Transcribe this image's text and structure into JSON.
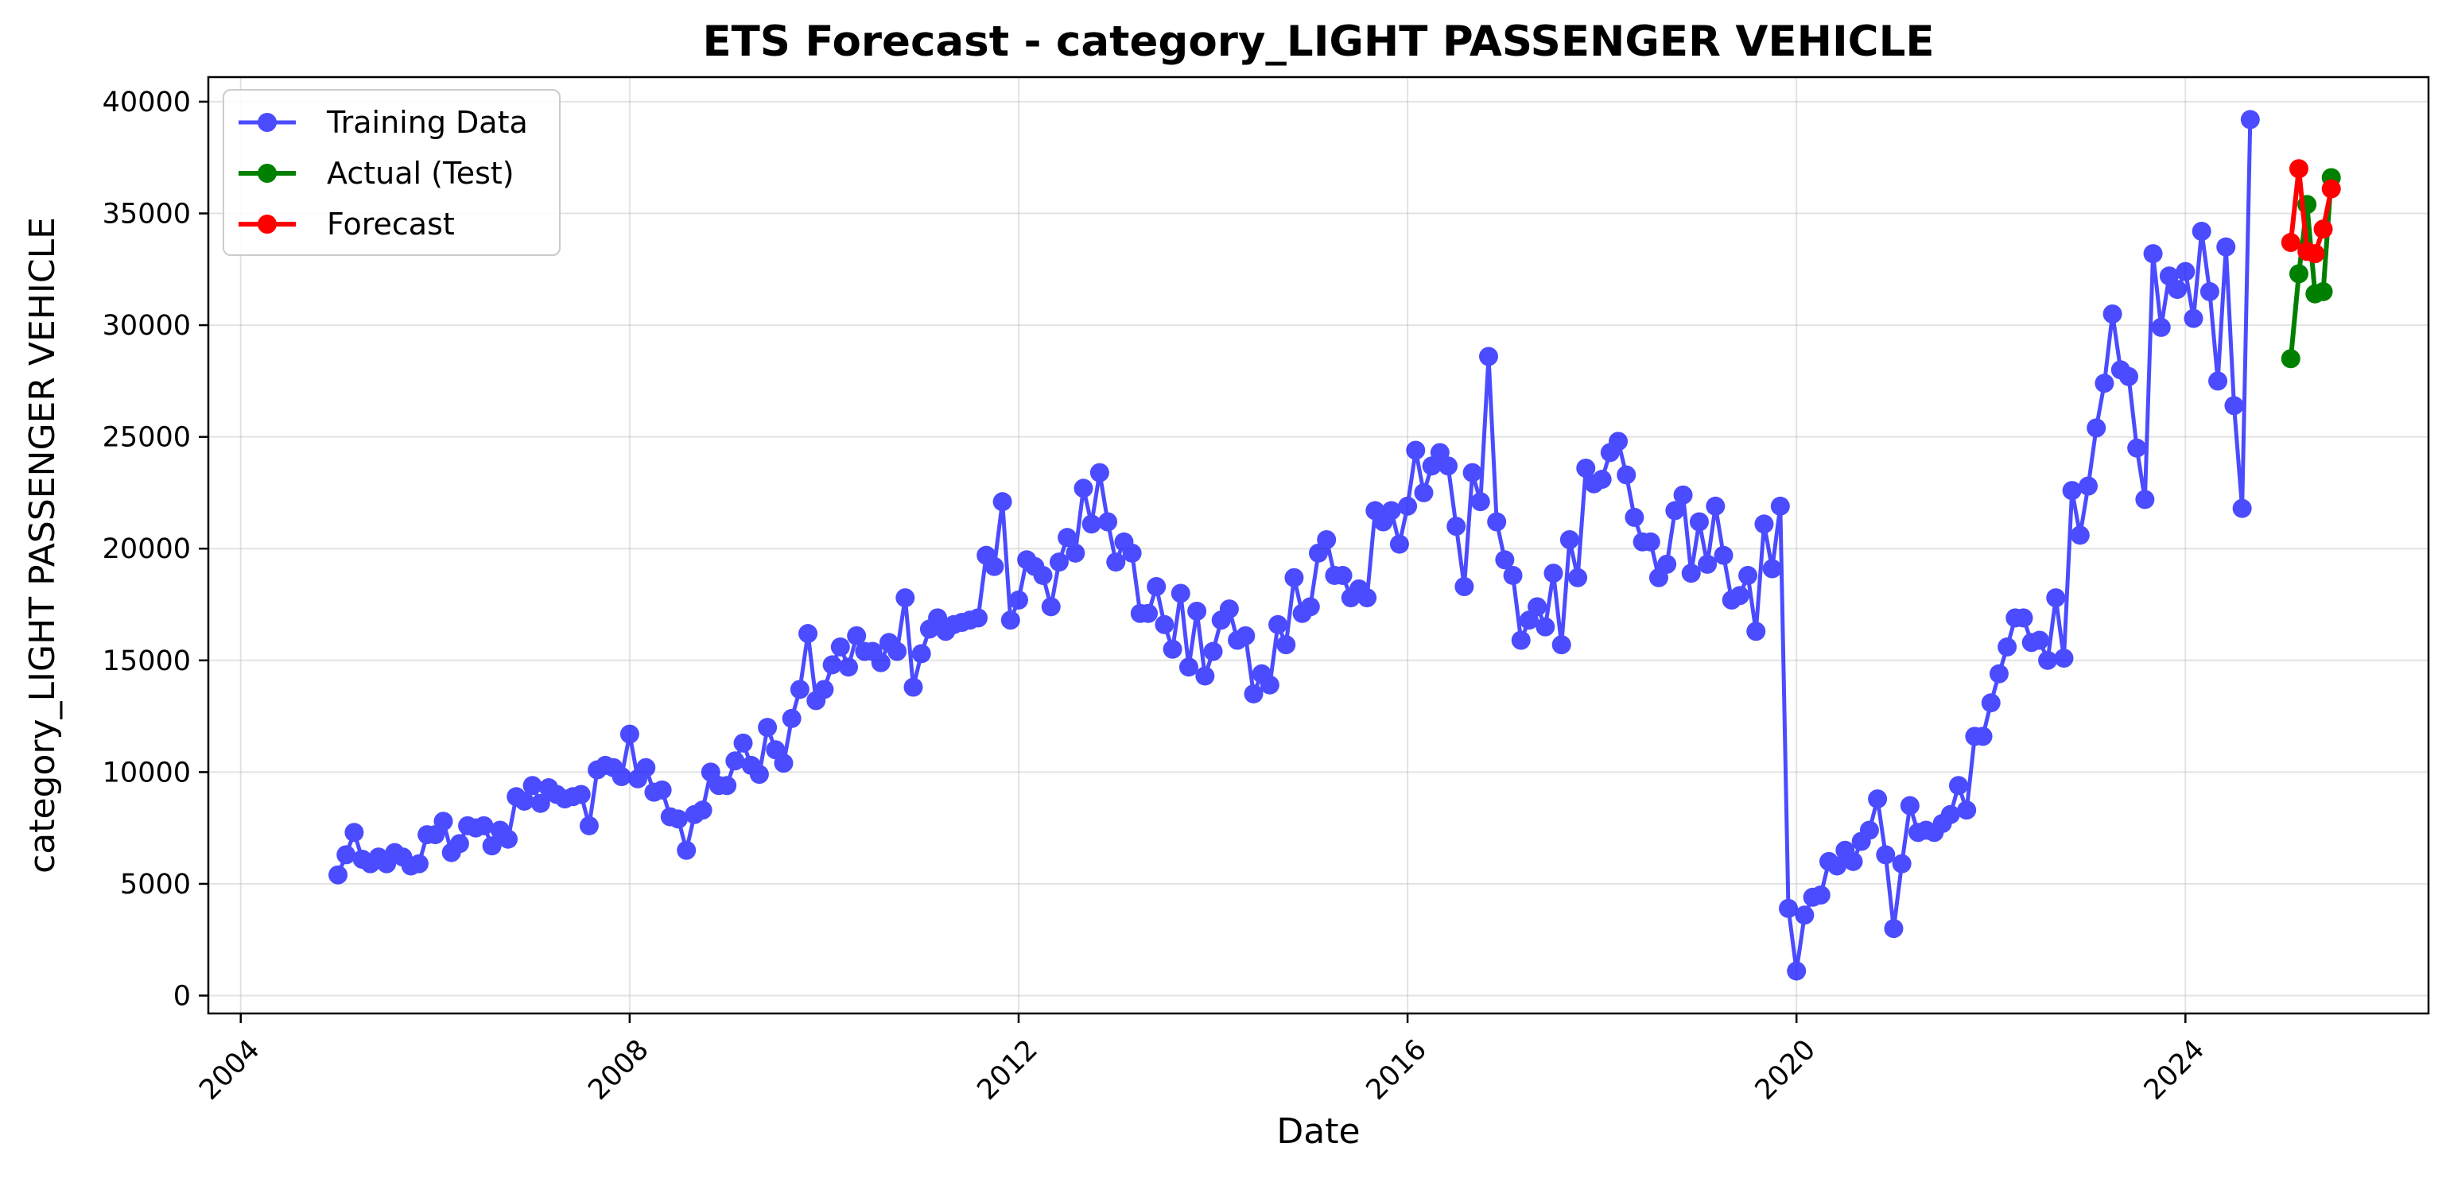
{
  "chart_data": {
    "type": "line",
    "title": "ETS Forecast - category_LIGHT PASSENGER VEHICLE",
    "xlabel": "Date",
    "ylabel": "category_LIGHT PASSENGER VEHICLE",
    "x_axis": {
      "type": "date",
      "range": [
        "2003-09-01",
        "2026-07-01"
      ],
      "ticks": [
        "2004",
        "2008",
        "2012",
        "2016",
        "2020",
        "2024"
      ],
      "tick_rotation_deg": 45
    },
    "y_axis": {
      "range": [
        -800,
        41100
      ],
      "ticks": [
        "0",
        "5000",
        "10000",
        "15000",
        "20000",
        "25000",
        "30000",
        "35000",
        "40000"
      ]
    },
    "grid": true,
    "legend_position": "top-left",
    "colors": {
      "training": "#0000ff",
      "actual": "#008000",
      "forecast": "#ff0000"
    },
    "series": [
      {
        "name": "Training Data",
        "color": "#0000ff",
        "start": "2005-01",
        "values": [
          5400,
          6300,
          7300,
          6100,
          5900,
          6200,
          5900,
          6400,
          6200,
          5800,
          5900,
          7200,
          7200,
          7800,
          6400,
          6800,
          7600,
          7500,
          7600,
          6700,
          7400,
          7000,
          8900,
          8700,
          9400,
          8600,
          9300,
          9000,
          8800,
          8900,
          9000,
          7600,
          10100,
          10300,
          10200,
          9800,
          11700,
          9700,
          10200,
          9100,
          9200,
          8000,
          7900,
          6500,
          8100,
          8300,
          10000,
          9400,
          9400,
          10500,
          11300,
          10300,
          9900,
          12000,
          11000,
          10400,
          12400,
          13700,
          16200,
          13200,
          13700,
          14800,
          15600,
          14700,
          16100,
          15400,
          15400,
          14900,
          15800,
          15400,
          17800,
          13800,
          15300,
          16400,
          16900,
          16300,
          16600,
          16700,
          16800,
          16900,
          19700,
          19200,
          22100,
          16800,
          17700,
          19500,
          19200,
          18800,
          17400,
          19400,
          20500,
          19800,
          22700,
          21100,
          23400,
          21200,
          19400,
          20300,
          19800,
          17100,
          17100,
          18300,
          16600,
          15500,
          18000,
          14700,
          17200,
          14300,
          15400,
          16800,
          17300,
          15900,
          16100,
          13500,
          14400,
          13900,
          16600,
          15700,
          18700,
          17100,
          17400,
          19800,
          20400,
          18800,
          18800,
          17800,
          18200,
          17800,
          21700,
          21200,
          21700,
          20200,
          21900,
          24400,
          22500,
          23700,
          24300,
          23700,
          21000,
          18300,
          23400,
          22100,
          28600,
          21200,
          19500,
          18800,
          15900,
          16800,
          17400,
          16500,
          18900,
          15700,
          20400,
          18700,
          23600,
          22900,
          23100,
          24300,
          24800,
          23300,
          21400,
          20300,
          20300,
          18700,
          19300,
          21700,
          22400,
          18900,
          21200,
          19300,
          21900,
          19700,
          17700,
          17900,
          18800,
          16300,
          21100,
          19100,
          21900,
          3900,
          1100,
          3600,
          4400,
          4500,
          6000,
          5800,
          6500,
          6000,
          6900,
          7400,
          8800,
          6300,
          3000,
          5900,
          8500,
          7300,
          7400,
          7300,
          7700,
          8100,
          9400,
          8300,
          11600,
          11600,
          13100,
          14400,
          15600,
          16900,
          16900,
          15800,
          15900,
          15000,
          17800,
          15100,
          22600,
          20600,
          22800,
          25400,
          27400,
          30500,
          28000,
          27700,
          24500,
          22200,
          33200,
          29900,
          32200,
          31600,
          32400,
          30300,
          34200,
          31500,
          27500,
          33500,
          26400,
          21800,
          39200
        ]
      },
      {
        "name": "Actual (Test)",
        "color": "#008000",
        "start": "2025-02",
        "values": [
          28500,
          32300,
          35400,
          31400,
          31500,
          36600
        ]
      },
      {
        "name": "Forecast",
        "color": "#ff0000",
        "start": "2025-02",
        "values": [
          33700,
          37000,
          33300,
          33200,
          34300,
          36100
        ]
      }
    ]
  }
}
